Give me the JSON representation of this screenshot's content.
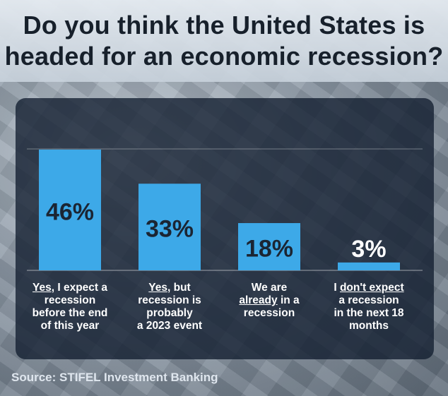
{
  "title": {
    "line1": "Do you think the United States is",
    "line2": "headed for an economic recession?"
  },
  "source": "Source: STIFEL Investment Banking",
  "colors": {
    "bar": "#3da9e8",
    "value_text": "#1b2533",
    "panel": "#16243a"
  },
  "chart_data": {
    "type": "bar",
    "ylim": [
      0,
      50
    ],
    "values": [
      46,
      33,
      18,
      3
    ],
    "value_labels": [
      "46%",
      "33%",
      "18%",
      "3%"
    ],
    "categories": [
      "Yes, I expect a recession before the end of this year",
      "Yes, but recession is probably a 2023 event",
      "We are already in a recession",
      "I don't expect a recession in the next 18 months"
    ],
    "category_parts": [
      [
        [
          {
            "t": "Yes",
            "u": true
          },
          {
            "t": ", I expect a",
            "u": false
          }
        ],
        [
          {
            "t": "recession",
            "u": false
          }
        ],
        [
          {
            "t": "before the end",
            "u": false
          }
        ],
        [
          {
            "t": "of this year",
            "u": false
          }
        ]
      ],
      [
        [
          {
            "t": "Yes",
            "u": true
          },
          {
            "t": ", but",
            "u": false
          }
        ],
        [
          {
            "t": "recession is",
            "u": false
          }
        ],
        [
          {
            "t": "probably",
            "u": false
          }
        ],
        [
          {
            "t": "a 2023 event",
            "u": false
          }
        ]
      ],
      [
        [
          {
            "t": "We are",
            "u": false
          }
        ],
        [
          {
            "t": "already",
            "u": true
          },
          {
            "t": " in a",
            "u": false
          }
        ],
        [
          {
            "t": "recession",
            "u": false
          }
        ]
      ],
      [
        [
          {
            "t": "I ",
            "u": false
          },
          {
            "t": "don't expect",
            "u": true
          }
        ],
        [
          {
            "t": "a recession",
            "u": false
          }
        ],
        [
          {
            "t": "in the next 18",
            "u": false
          }
        ],
        [
          {
            "t": "months",
            "u": false
          }
        ]
      ]
    ]
  }
}
